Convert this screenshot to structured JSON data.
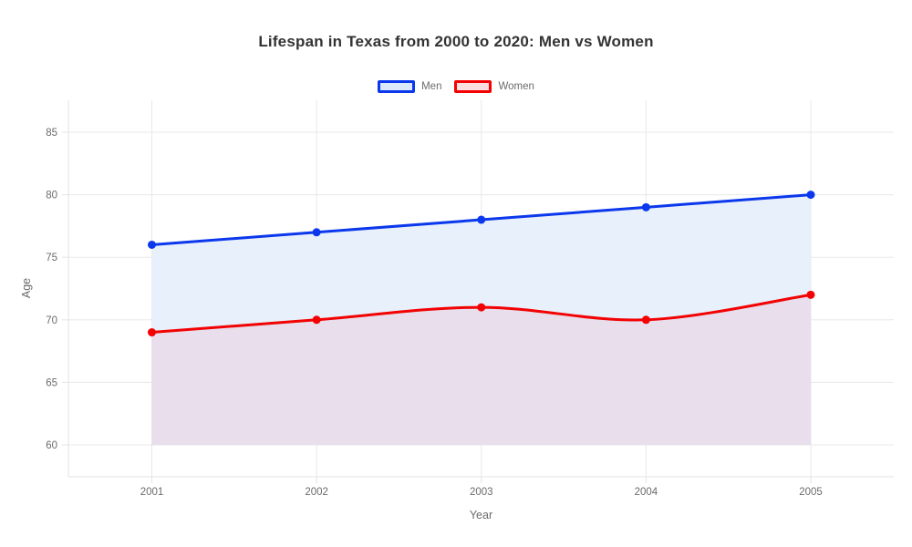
{
  "title": "Lifespan in Texas from 2000 to 2020: Men vs Women",
  "chart_data": {
    "type": "line",
    "x": [
      2001,
      2002,
      2003,
      2004,
      2005
    ],
    "series": [
      {
        "name": "Men",
        "values": [
          76,
          77,
          78,
          79,
          80
        ],
        "color": "#0b38ec",
        "area_fill_color": "#e7f0fb",
        "line_shape": "linear",
        "fill": "area-between-this-and-women-line"
      },
      {
        "name": "Women",
        "values": [
          69,
          70,
          71,
          70,
          72
        ],
        "color": "#f20202",
        "area_fill_color": "#e8deec",
        "line_shape": "spline",
        "fill": "area-down-to-baseline"
      }
    ],
    "xlabel": "Year",
    "ylabel": "Age",
    "yticks": [
      60,
      65,
      70,
      75,
      80,
      85
    ],
    "ylim": [
      57.4,
      87.6
    ],
    "fill_baseline": 60,
    "grid": true,
    "legend_position": "top-center",
    "background_color": "#ffffff",
    "gridline_color": "#e8e8e8",
    "axisline_color": "#e3e3e3",
    "tick_label_color": "#6b6b6b",
    "title_color": "#333333"
  }
}
